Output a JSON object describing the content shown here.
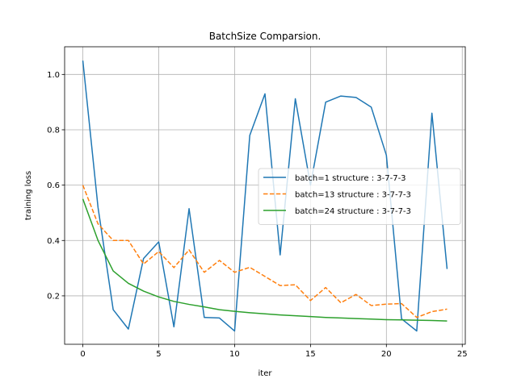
{
  "chart_data": {
    "type": "line",
    "title": "BatchSize Comparsion.",
    "xlabel": "iter",
    "ylabel": "training loss",
    "xlim": [
      -1.2,
      25.2
    ],
    "ylim": [
      0.025,
      1.1
    ],
    "xticks": [
      0,
      5,
      10,
      15,
      20,
      25
    ],
    "yticks": [
      0.2,
      0.4,
      0.6,
      0.8,
      1.0
    ],
    "ytick_labels": [
      "0.2",
      "0.4",
      "0.6",
      "0.8",
      "1.0"
    ],
    "grid": true,
    "legend_position": "center-right",
    "x": [
      0,
      1,
      2,
      3,
      4,
      5,
      6,
      7,
      8,
      9,
      10,
      11,
      12,
      13,
      14,
      15,
      16,
      17,
      18,
      19,
      20,
      21,
      22,
      23,
      24
    ],
    "series": [
      {
        "name": "batch=1 structure : 3-7-7-3",
        "color": "#1f77b4",
        "dash": "solid",
        "values": [
          1.05,
          0.52,
          0.15,
          0.08,
          0.335,
          0.395,
          0.088,
          0.515,
          0.122,
          0.12,
          0.073,
          0.78,
          0.93,
          0.348,
          0.912,
          0.6,
          0.9,
          0.922,
          0.917,
          0.882,
          0.708,
          0.117,
          0.073,
          0.86,
          0.297
        ]
      },
      {
        "name": "batch=13 structure : 3-7-7-3",
        "color": "#ff7f0e",
        "dash": "dashed",
        "values": [
          0.6,
          0.46,
          0.4,
          0.4,
          0.315,
          0.36,
          0.302,
          0.366,
          0.285,
          0.328,
          0.285,
          0.303,
          0.27,
          0.237,
          0.24,
          0.183,
          0.23,
          0.175,
          0.205,
          0.165,
          0.17,
          0.172,
          0.122,
          0.143,
          0.152
        ]
      },
      {
        "name": "batch=24 structure : 3-7-7-3",
        "color": "#2ca02c",
        "dash": "solid",
        "values": [
          0.55,
          0.4,
          0.29,
          0.245,
          0.217,
          0.196,
          0.18,
          0.169,
          0.16,
          0.15,
          0.144,
          0.139,
          0.135,
          0.131,
          0.128,
          0.125,
          0.122,
          0.12,
          0.118,
          0.116,
          0.114,
          0.113,
          0.112,
          0.111,
          0.109
        ]
      }
    ]
  }
}
